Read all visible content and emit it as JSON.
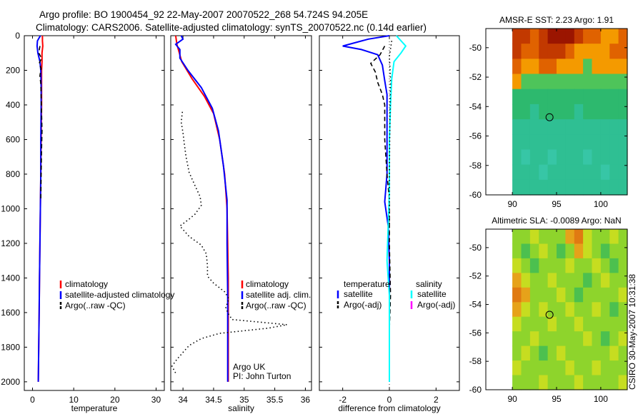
{
  "header": {
    "line1": "Argo profile: BO 1900454_92 22-May-2007 20070522_268 54.724S 94.205E",
    "line2": "Climatology: CARS2006. Satellite-adjusted climatology: synTS_20070522.nc (0.14d earlier)"
  },
  "footer": {
    "vertical_stamp": "CSIRO 30-May-2007 10:31:38"
  },
  "colors": {
    "climatology": "#ff0000",
    "satellite": "#0000ff",
    "argo": "#000000",
    "salinity_satellite": "#00ffff",
    "salinity_argo_adj": "#ff00ff"
  },
  "chart_data": [
    {
      "id": "temperature",
      "type": "line",
      "xlabel": "temperature",
      "ylabel": "",
      "xlim": [
        -2,
        32
      ],
      "ylim": [
        2050,
        0
      ],
      "yticks": [
        0,
        200,
        400,
        600,
        800,
        1000,
        1200,
        1400,
        1600,
        1800,
        2000
      ],
      "xticks": [
        0,
        10,
        20,
        30
      ],
      "legend": {
        "position": "lower-right",
        "entries": [
          "climatology",
          "satellite-adjusted climatology",
          "Argo(..raw -QC)"
        ]
      },
      "series": [
        {
          "name": "climatology",
          "color": "#ff0000",
          "style": "solid",
          "points": [
            [
              2.4,
              0
            ],
            [
              2.4,
              30
            ],
            [
              2.5,
              60
            ],
            [
              2.3,
              100
            ],
            [
              2.3,
              150
            ],
            [
              2.2,
              200
            ],
            [
              2.2,
              300
            ],
            [
              2.2,
              400
            ],
            [
              2.1,
              600
            ],
            [
              2.0,
              800
            ],
            [
              1.9,
              1000
            ],
            [
              1.8,
              1200
            ],
            [
              1.7,
              1400
            ],
            [
              1.6,
              1600
            ],
            [
              1.5,
              1800
            ],
            [
              1.4,
              2000
            ]
          ]
        },
        {
          "name": "satellite-adjusted climatology",
          "color": "#0000ff",
          "style": "solid",
          "points": [
            [
              1.9,
              0
            ],
            [
              1.2,
              30
            ],
            [
              1.1,
              60
            ],
            [
              1.3,
              100
            ],
            [
              1.8,
              150
            ],
            [
              2.0,
              200
            ],
            [
              2.1,
              300
            ],
            [
              2.1,
              400
            ],
            [
              2.0,
              600
            ],
            [
              2.0,
              800
            ],
            [
              1.9,
              1000
            ],
            [
              1.8,
              1200
            ],
            [
              1.7,
              1400
            ],
            [
              1.6,
              1600
            ],
            [
              1.5,
              1800
            ],
            [
              1.4,
              2000
            ]
          ]
        },
        {
          "name": "Argo(..raw -QC)",
          "color": "#000000",
          "style": "dashed",
          "points": [
            [
              1.8,
              60
            ],
            [
              1.5,
              100
            ],
            [
              2.2,
              130
            ],
            [
              1.6,
              160
            ],
            [
              2.1,
              190
            ],
            [
              1.8,
              230
            ],
            [
              2.0,
              280
            ],
            [
              2.1,
              350
            ],
            [
              2.2,
              450
            ],
            [
              2.3,
              550
            ],
            [
              2.2,
              650
            ],
            [
              2.1,
              800
            ],
            [
              2.0,
              950
            ]
          ]
        }
      ]
    },
    {
      "id": "salinity",
      "type": "line",
      "xlabel": "salinity",
      "ylabel": "",
      "xlim": [
        33.8,
        36.1
      ],
      "ylim": [
        2050,
        0
      ],
      "xticks": [
        34,
        34.5,
        35,
        35.5,
        36
      ],
      "legend": {
        "position": "lower-right",
        "entries": [
          "climatology",
          "satellite adj. clim.",
          "Argo(..raw -QC)"
        ]
      },
      "annotation": [
        "Argo UK",
        "PI: John Turton"
      ],
      "series": [
        {
          "name": "climatology",
          "color": "#ff0000",
          "style": "solid",
          "points": [
            [
              33.88,
              0
            ],
            [
              33.9,
              50
            ],
            [
              33.98,
              150
            ],
            [
              34.15,
              250
            ],
            [
              34.35,
              350
            ],
            [
              34.5,
              450
            ],
            [
              34.6,
              600
            ],
            [
              34.68,
              800
            ],
            [
              34.72,
              1000
            ],
            [
              34.73,
              1200
            ],
            [
              34.74,
              1400
            ],
            [
              34.74,
              1700
            ],
            [
              34.74,
              2000
            ]
          ]
        },
        {
          "name": "satellite adj. clim.",
          "color": "#0000ff",
          "style": "solid",
          "points": [
            [
              33.97,
              0
            ],
            [
              34.0,
              20
            ],
            [
              33.88,
              50
            ],
            [
              33.95,
              80
            ],
            [
              33.95,
              130
            ],
            [
              34.08,
              200
            ],
            [
              34.3,
              300
            ],
            [
              34.48,
              420
            ],
            [
              34.58,
              550
            ],
            [
              34.66,
              750
            ],
            [
              34.72,
              950
            ],
            [
              34.72,
              1200
            ],
            [
              34.73,
              1500
            ],
            [
              34.73,
              1800
            ],
            [
              34.73,
              2000
            ]
          ]
        },
        {
          "name": "Argo(..raw -QC)",
          "color": "#000000",
          "style": "dotted",
          "points": [
            [
              33.99,
              440
            ],
            [
              33.97,
              500
            ],
            [
              34.0,
              560
            ],
            [
              34.02,
              620
            ],
            [
              34.05,
              700
            ],
            [
              34.1,
              790
            ],
            [
              34.2,
              870
            ],
            [
              34.28,
              930
            ],
            [
              34.3,
              980
            ],
            [
              34.2,
              1030
            ],
            [
              34.1,
              1060
            ],
            [
              33.95,
              1100
            ],
            [
              34.1,
              1160
            ],
            [
              34.3,
              1210
            ],
            [
              34.38,
              1260
            ],
            [
              34.4,
              1330
            ],
            [
              34.4,
              1390
            ],
            [
              34.5,
              1430
            ],
            [
              34.68,
              1480
            ],
            [
              34.75,
              1520
            ],
            [
              34.7,
              1570
            ],
            [
              34.73,
              1600
            ],
            [
              34.8,
              1640
            ],
            [
              35.7,
              1670
            ],
            [
              35.4,
              1690
            ],
            [
              34.6,
              1720
            ],
            [
              34.3,
              1750
            ],
            [
              34.1,
              1790
            ],
            [
              34.0,
              1830
            ],
            [
              33.9,
              1870
            ],
            [
              33.82,
              1910
            ],
            [
              33.88,
              1950
            ]
          ]
        }
      ]
    },
    {
      "id": "difference",
      "type": "line",
      "xlabel": "difference from climatology",
      "ylabel": "",
      "xlim": [
        -3,
        3
      ],
      "ylim": [
        2050,
        0
      ],
      "xticks": [
        -2,
        0,
        2
      ],
      "legend": {
        "position": "lower-center",
        "group_titles": [
          "temperature",
          "salinity"
        ],
        "entries": [
          "satellite",
          "Argo(-adj)",
          "satellite",
          "Argo(-adj)"
        ]
      },
      "series": [
        {
          "name": "temperature satellite",
          "color": "#0000ff",
          "style": "solid",
          "points": [
            [
              0,
              0
            ],
            [
              -0.9,
              20
            ],
            [
              -2.0,
              60
            ],
            [
              -1.2,
              80
            ],
            [
              -0.5,
              110
            ],
            [
              -0.3,
              170
            ],
            [
              -0.2,
              260
            ],
            [
              -0.1,
              340
            ],
            [
              -0.1,
              500
            ],
            [
              -0.1,
              800
            ],
            [
              -0.2,
              960
            ],
            [
              -0.05,
              1100
            ],
            [
              0,
              1300
            ],
            [
              0,
              1600
            ],
            [
              0,
              2000
            ]
          ]
        },
        {
          "name": "temperature Argo(-adj)",
          "color": "#000000",
          "style": "dashed",
          "points": [
            [
              -0.2,
              60
            ],
            [
              -0.4,
              110
            ],
            [
              -0.8,
              160
            ],
            [
              -0.6,
              210
            ],
            [
              -0.5,
              270
            ],
            [
              -0.3,
              340
            ],
            [
              -0.2,
              400
            ],
            [
              -0.2,
              600
            ],
            [
              -0.1,
              800
            ],
            [
              0,
              950
            ],
            [
              0,
              1200
            ],
            [
              0.05,
              1500
            ],
            [
              0,
              1700
            ],
            [
              0,
              1900
            ]
          ]
        },
        {
          "name": "salinity satellite",
          "color": "#00ffff",
          "style": "solid",
          "points": [
            [
              0.3,
              0
            ],
            [
              0.7,
              60
            ],
            [
              0.5,
              100
            ],
            [
              0.2,
              150
            ],
            [
              0.1,
              250
            ],
            [
              0.05,
              400
            ],
            [
              0,
              600
            ],
            [
              0,
              900
            ],
            [
              -0.1,
              1300
            ],
            [
              0,
              1500
            ],
            [
              0,
              1800
            ],
            [
              0,
              2000
            ]
          ]
        },
        {
          "name": "salinity Argo(-adj)",
          "color": "#000000",
          "style": "dotted",
          "points": [
            [
              0.1,
              30
            ],
            [
              0.0,
              120
            ],
            [
              0.05,
              250
            ],
            [
              0.02,
              500
            ],
            [
              0.0,
              800
            ],
            [
              0.0,
              1100
            ]
          ]
        }
      ]
    },
    {
      "id": "sst-map",
      "type": "heatmap",
      "title": "AMSR-E SST: 2.23 Argo: 1.91",
      "xlim": [
        87,
        103
      ],
      "ylim": [
        -60,
        -48.7
      ],
      "xticks": [
        90,
        95,
        100
      ],
      "yticks": [
        -50,
        -52,
        -54,
        -56,
        -58,
        -60
      ],
      "data_extent": {
        "x": [
          90,
          103
        ],
        "y": [
          -60,
          -48.7
        ]
      },
      "marker": {
        "lon": 94.205,
        "lat": -54.724
      },
      "grid": [
        [
          1,
          1,
          2,
          1,
          0,
          0,
          0,
          1,
          2,
          2,
          3,
          3,
          2
        ],
        [
          1,
          2,
          2,
          1,
          1,
          1,
          2,
          3,
          3,
          3,
          3,
          2,
          2
        ],
        [
          2,
          3,
          3,
          2,
          2,
          3,
          3,
          3,
          4,
          3,
          3,
          3,
          3
        ],
        [
          3,
          4,
          4,
          4,
          4,
          4,
          4,
          4,
          4,
          4,
          4,
          4,
          4
        ],
        [
          5,
          5,
          5,
          5,
          5,
          5,
          5,
          5,
          5,
          5,
          5,
          5,
          5
        ],
        [
          5,
          5,
          6,
          5,
          5,
          5,
          5,
          6,
          5,
          5,
          5,
          5,
          5
        ],
        [
          6,
          6,
          6,
          6,
          6,
          6,
          6,
          6,
          6,
          6,
          6,
          6,
          6
        ],
        [
          6,
          6,
          6,
          6,
          6,
          6,
          6,
          6,
          6,
          6,
          6,
          6,
          6
        ],
        [
          6,
          7,
          6,
          6,
          7,
          6,
          6,
          6,
          7,
          6,
          6,
          6,
          6
        ],
        [
          6,
          6,
          6,
          7,
          6,
          6,
          6,
          6,
          6,
          6,
          7,
          6,
          6
        ],
        [
          6,
          6,
          6,
          6,
          6,
          6,
          6,
          6,
          6,
          6,
          6,
          6,
          6
        ]
      ],
      "palette": [
        "#9b1500",
        "#c23900",
        "#e06200",
        "#f49a00",
        "#4ec45a",
        "#2db96e",
        "#2fbf93",
        "#37c6a6"
      ]
    },
    {
      "id": "sla-map",
      "type": "heatmap",
      "title": "Altimetric SLA: -0.0089 Argo: NaN",
      "xlim": [
        87,
        103
      ],
      "ylim": [
        -60,
        -48.7
      ],
      "xticks": [
        90,
        95,
        100
      ],
      "yticks": [
        -50,
        -52,
        -54,
        -56,
        -58,
        -60
      ],
      "data_extent": {
        "x": [
          90,
          103
        ],
        "y": [
          -60,
          -48.7
        ]
      },
      "marker": {
        "lon": 94.205,
        "lat": -54.724
      },
      "grid": [
        [
          2,
          2,
          3,
          2,
          2,
          2,
          4,
          5,
          3,
          2,
          2,
          3,
          2
        ],
        [
          2,
          1,
          2,
          3,
          2,
          1,
          2,
          4,
          3,
          2,
          1,
          2,
          2
        ],
        [
          3,
          2,
          1,
          2,
          2,
          2,
          3,
          2,
          2,
          3,
          2,
          1,
          2
        ],
        [
          4,
          3,
          2,
          2,
          3,
          2,
          2,
          2,
          1,
          2,
          3,
          2,
          2
        ],
        [
          5,
          4,
          2,
          2,
          2,
          3,
          2,
          1,
          2,
          2,
          2,
          2,
          3
        ],
        [
          4,
          3,
          2,
          3,
          2,
          2,
          3,
          2,
          2,
          3,
          2,
          1,
          2
        ],
        [
          3,
          2,
          2,
          2,
          3,
          2,
          2,
          3,
          2,
          2,
          2,
          2,
          2
        ],
        [
          2,
          2,
          3,
          2,
          2,
          2,
          2,
          2,
          3,
          2,
          1,
          2,
          3
        ],
        [
          2,
          3,
          2,
          1,
          2,
          3,
          2,
          2,
          2,
          2,
          2,
          3,
          2
        ],
        [
          3,
          2,
          2,
          2,
          2,
          2,
          3,
          2,
          2,
          3,
          2,
          2,
          2
        ],
        [
          2,
          2,
          2,
          3,
          2,
          2,
          2,
          3,
          2,
          2,
          2,
          2,
          3
        ]
      ],
      "palette": [
        "#1fb28f",
        "#4cc04f",
        "#8ed42c",
        "#c6dd20",
        "#e6a21a",
        "#e07a12"
      ]
    }
  ]
}
